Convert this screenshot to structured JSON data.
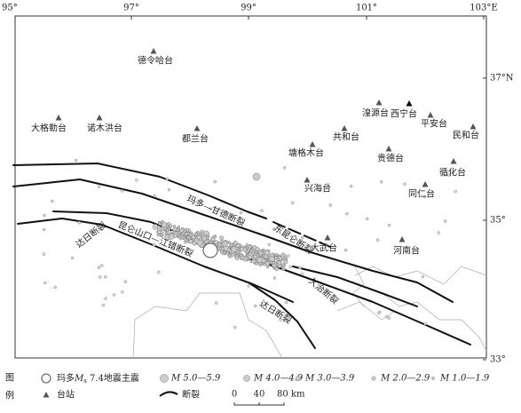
{
  "lon_labels": [
    "95°",
    "97°",
    "99°",
    "101°",
    "103°E"
  ],
  "lat_labels": [
    "37°N",
    "35°",
    "33°"
  ],
  "stations": [
    "德令哈台",
    "大格勒台",
    "诺木洪台",
    "都兰台",
    "湟源台",
    "西宁台",
    "平安台",
    "民和台",
    "共和台",
    "塘格木台",
    "贵德台",
    "循化台",
    "兴海台",
    "同仁台",
    "大武台",
    "河南台"
  ],
  "faults": [
    "玛多—甘德断裂",
    "东昆仑断裂",
    "昆仑山口—江错断裂",
    "达日断裂",
    "久治断裂",
    "达日断裂"
  ],
  "legend": {
    "title": [
      "图",
      "例"
    ],
    "mainshock": {
      "prefix": "玛多",
      "symbol": "M",
      "subscript": "s",
      "suffix": " 7.4地震主震"
    },
    "magnitude_classes": [
      "M 5.0—5.9",
      "M 4.0—4.9",
      "M 3.0—3.9",
      "M 2.0—2.9",
      "M 1.0—1.9"
    ],
    "station": "台站",
    "fault": "断裂"
  },
  "scale_bar": [
    "0",
    "40",
    "80 km"
  ]
}
